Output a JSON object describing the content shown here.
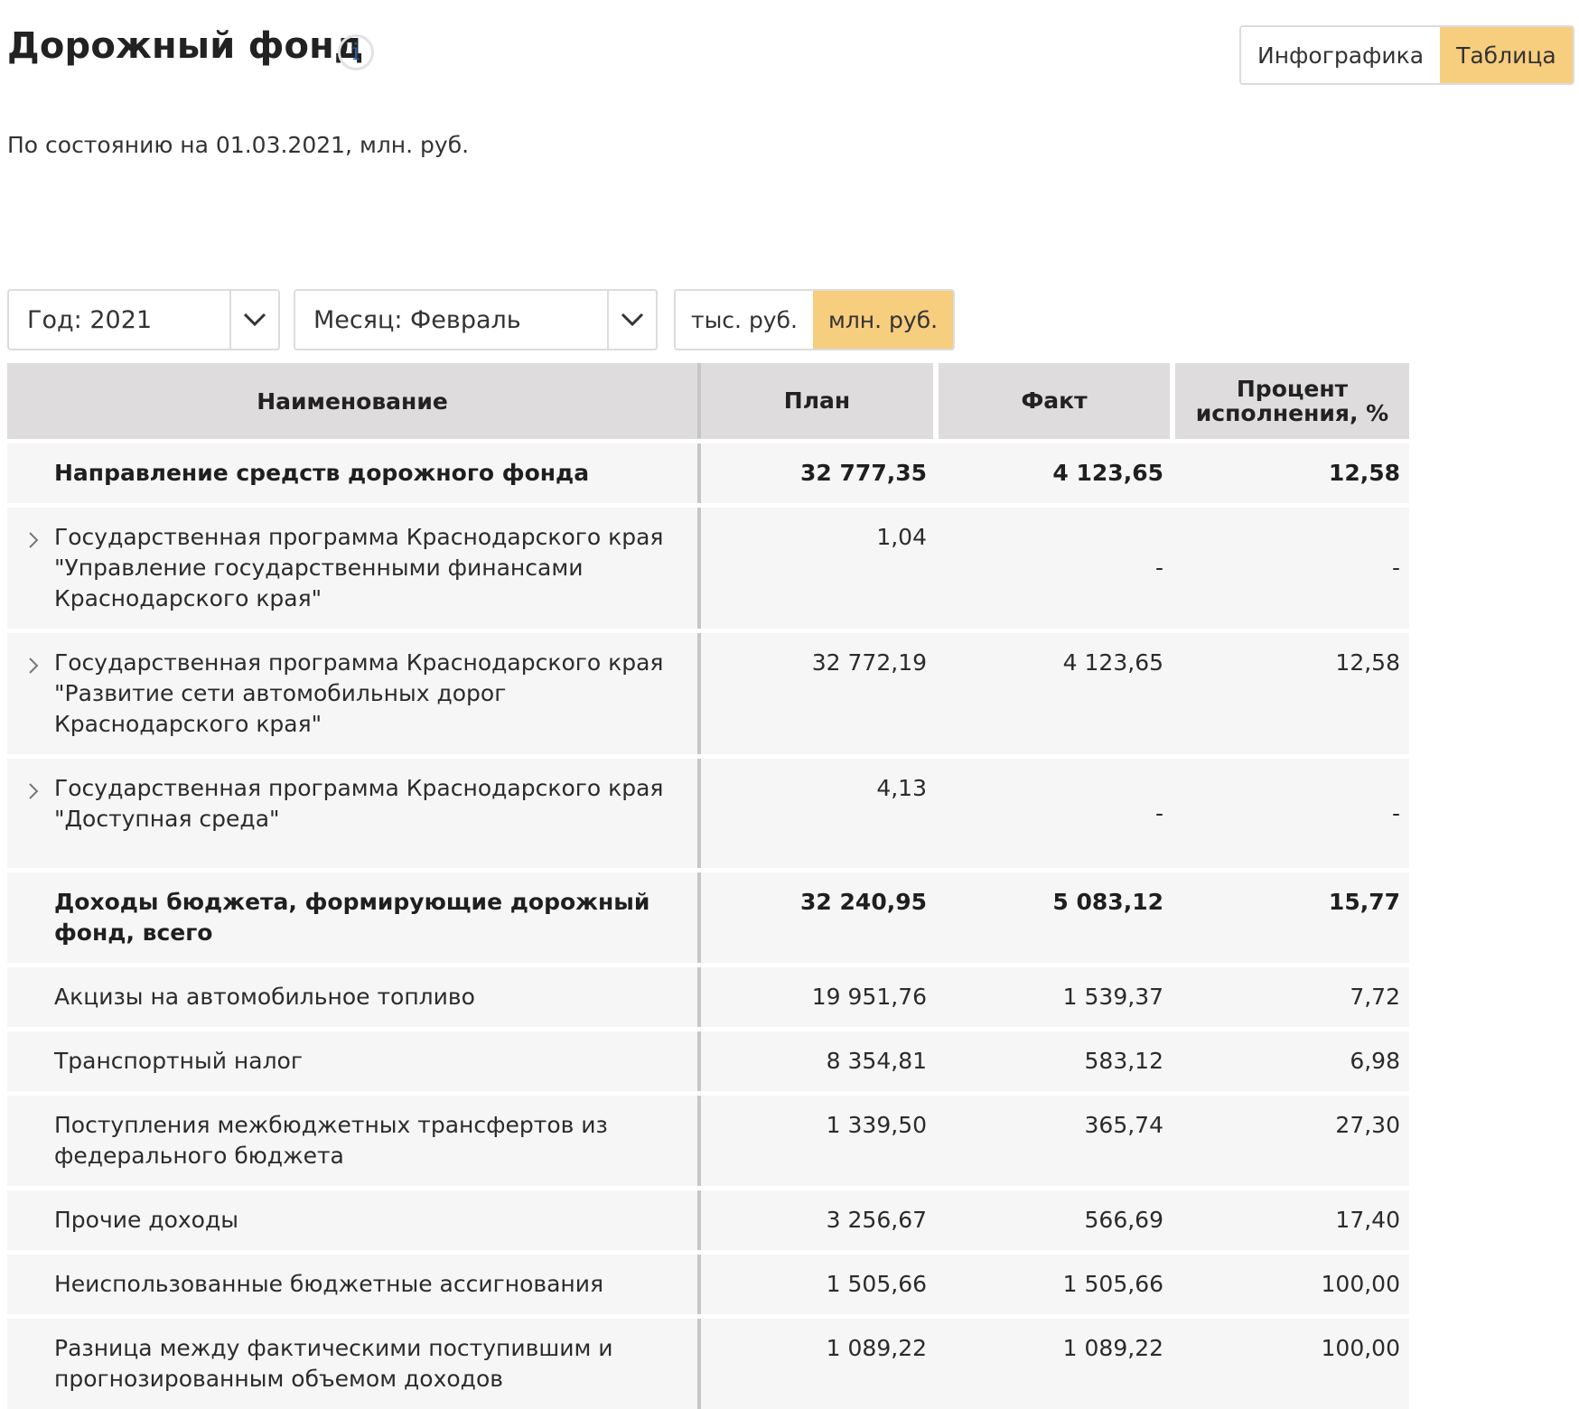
{
  "header": {
    "title": "Дорожный фонд",
    "subtitle": "По состоянию на 01.03.2021, млн. руб."
  },
  "view_toggle": {
    "infographic_label": "Инфографика",
    "table_label": "Таблица",
    "active": "Таблица"
  },
  "filters": {
    "year_label": "Год: 2021",
    "month_label": "Месяц: Февраль"
  },
  "unit_toggle": {
    "thousand_label": "тыс. руб.",
    "million_label": "млн. руб.",
    "active": "млн. руб."
  },
  "colors": {
    "accent": "#f7cd7e",
    "header_bg": "#dedcdd",
    "row_bg": "#f6f6f6"
  },
  "table": {
    "headers": {
      "name": "Наименование",
      "plan": "План",
      "fact": "Факт",
      "percent": "Процент исполнения, %"
    },
    "rows": [
      {
        "name": "Направление средств дорожного фонда",
        "plan": "32 777,35",
        "fact": "4 123,65",
        "percent": "12,58",
        "bold": true,
        "expandable": false
      },
      {
        "name": "Государственная программа Краснодарского края \"Управление государственными финансами Краснодарского края\"",
        "plan": "1,04",
        "fact": "-",
        "percent": "-",
        "bold": false,
        "expandable": true
      },
      {
        "name": "Государственная программа Краснодарского края \"Развитие сети автомобильных дорог Краснодарского края\"",
        "plan": "32 772,19",
        "fact": "4 123,65",
        "percent": "12,58",
        "bold": false,
        "expandable": true
      },
      {
        "name": "Государственная программа Краснодарского края \"Доступная среда\"",
        "plan": "4,13",
        "fact": "-",
        "percent": "-",
        "bold": false,
        "expandable": true
      },
      {
        "name": "Доходы бюджета, формирующие дорожный фонд, всего",
        "plan": "32 240,95",
        "fact": "5 083,12",
        "percent": "15,77",
        "bold": true,
        "expandable": false
      },
      {
        "name": "Акцизы на автомобильное топливо",
        "plan": "19 951,76",
        "fact": "1 539,37",
        "percent": "7,72",
        "bold": false,
        "expandable": false
      },
      {
        "name": "Транспортный налог",
        "plan": "8 354,81",
        "fact": "583,12",
        "percent": "6,98",
        "bold": false,
        "expandable": false
      },
      {
        "name": "Поступления межбюджетных трансфертов из федерального бюджета",
        "plan": "1 339,50",
        "fact": "365,74",
        "percent": "27,30",
        "bold": false,
        "expandable": false
      },
      {
        "name": "Прочие доходы",
        "plan": "3 256,67",
        "fact": "566,69",
        "percent": "17,40",
        "bold": false,
        "expandable": false
      },
      {
        "name": "Неиспользованные бюджетные ассигнования",
        "plan": "1 505,66",
        "fact": "1 505,66",
        "percent": "100,00",
        "bold": false,
        "expandable": false
      },
      {
        "name": "Разница между фактическими поступившим и прогнозированным объемом доходов",
        "plan": "1 089,22",
        "fact": "1 089,22",
        "percent": "100,00",
        "bold": false,
        "expandable": false
      }
    ]
  }
}
